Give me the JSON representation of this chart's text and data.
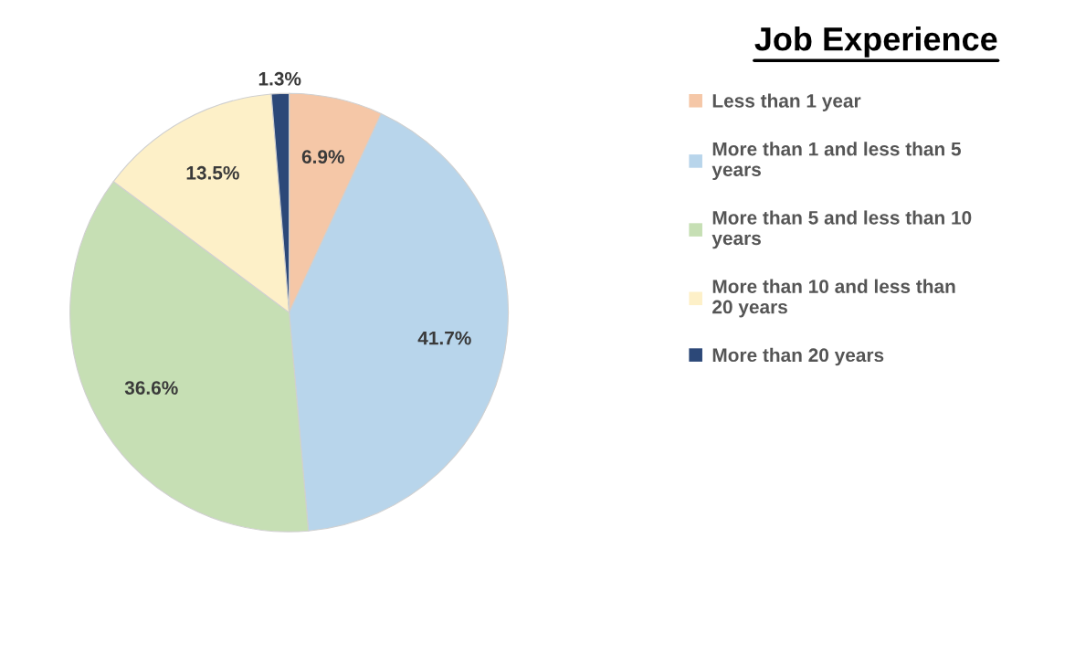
{
  "chart_data": {
    "type": "pie",
    "title": "Job Experience",
    "categories": [
      "Less than 1 year",
      "More than 1 and less than 5 years",
      "More than 5 and less than 10 years",
      "More than 10 and less than 20 years",
      "More than 20 years"
    ],
    "values": [
      6.9,
      41.7,
      36.6,
      13.5,
      1.3
    ],
    "colors": [
      "#f5c7a7",
      "#b8d5eb",
      "#c6dfb4",
      "#fdf0c8",
      "#2c4878"
    ],
    "value_labels": [
      "6.9%",
      "41.7%",
      "36.6%",
      "13.5%",
      "1.3%"
    ],
    "legend": "right"
  }
}
